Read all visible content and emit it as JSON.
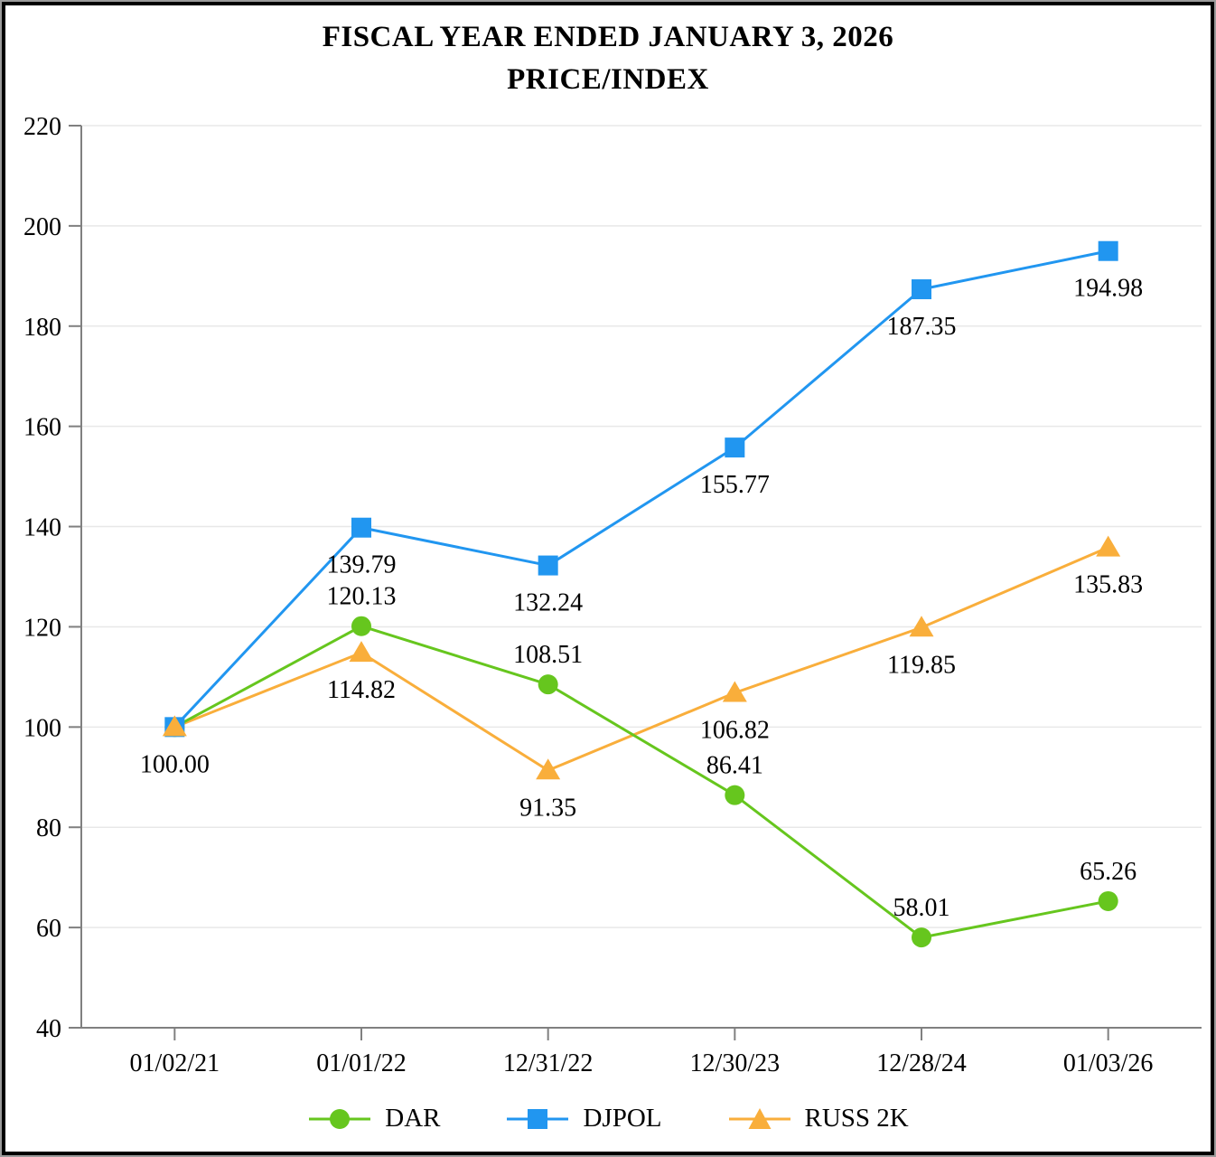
{
  "title": {
    "line1": "FISCAL YEAR ENDED JANUARY 3, 2026",
    "line2": "PRICE/INDEX"
  },
  "chart_data": {
    "type": "line",
    "title": "FISCAL YEAR ENDED JANUARY 3, 2026 PRICE/INDEX",
    "categories": [
      "01/02/21",
      "01/01/22",
      "12/31/22",
      "12/30/23",
      "12/28/24",
      "01/03/26"
    ],
    "series": [
      {
        "name": "DAR",
        "marker": "circle",
        "color": "#66C61E",
        "values": [
          100.0,
          120.13,
          108.51,
          86.41,
          58.01,
          65.26
        ],
        "labels": [
          null,
          "120.13",
          "108.51",
          "86.41",
          "58.01",
          "65.26"
        ],
        "label_pos": "above"
      },
      {
        "name": "DJPOL",
        "marker": "square",
        "color": "#2196F0",
        "values": [
          100.0,
          139.79,
          132.24,
          155.77,
          187.35,
          194.98
        ],
        "labels": [
          "100.00",
          "139.79",
          "132.24",
          "155.77",
          "187.35",
          "194.98"
        ],
        "label_pos": "below"
      },
      {
        "name": "RUSS 2K",
        "marker": "triangle",
        "color": "#F9AE3B",
        "values": [
          100.0,
          114.82,
          91.35,
          106.82,
          119.85,
          135.83
        ],
        "labels": [
          null,
          "114.82",
          "91.35",
          "106.82",
          "119.85",
          "135.83"
        ],
        "label_pos": "below"
      }
    ],
    "ylim": [
      40,
      220
    ],
    "yticks": [
      40,
      60,
      80,
      100,
      120,
      140,
      160,
      180,
      200,
      220
    ],
    "xlabel": "",
    "ylabel": "",
    "grid": true,
    "legend_position": "bottom",
    "axis_color": "#808080",
    "grid_color": "#e8e8e8",
    "label_color": "#000000"
  }
}
